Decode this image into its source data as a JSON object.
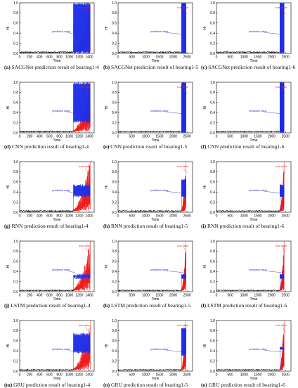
{
  "colors": {
    "axis": "#000000",
    "baseline": "#000000",
    "prediction": "#1f2fe6",
    "true": "#ee1c1c",
    "label": "#2020cc"
  },
  "common": {
    "xlabel": "Time",
    "ylabel": "HI",
    "yticks": [
      "0.0",
      "0.2",
      "0.4",
      "0.6",
      "0.8",
      "1.0"
    ],
    "pred_label": "prediction value",
    "true_label": "true value"
  },
  "panels": [
    {
      "id": "a",
      "caption": "SACGNet prediction result of bearing1-4",
      "xmax": 1500,
      "xticks": [
        "0",
        "200",
        "400",
        "600",
        "800",
        "1000",
        "1200",
        "1400"
      ],
      "ylim": [
        0,
        1.0
      ],
      "onset": 1080,
      "end": 1420,
      "model": "SACGNet",
      "pred_lo": 0.0,
      "pred_hi": 1.0
    },
    {
      "id": "b",
      "caption": "SACGNet prediction result of bearing1-5",
      "xmax": 2700,
      "xticks": [
        "0",
        "500",
        "1000",
        "1500",
        "2000",
        "2500"
      ],
      "ylim": [
        0,
        1.0
      ],
      "onset": 2300,
      "end": 2460,
      "model": "SACGNet",
      "pred_lo": 0.0,
      "pred_hi": 1.0
    },
    {
      "id": "c",
      "caption": "SACGNet prediction result of bearing1-6",
      "xmax": 2700,
      "xticks": [
        "0",
        "500",
        "1000",
        "1500",
        "2000",
        "2500"
      ],
      "ylim": [
        0,
        1.0
      ],
      "onset": 2300,
      "end": 2450,
      "model": "SACGNet",
      "pred_lo": 0.0,
      "pred_hi": 1.0
    },
    {
      "id": "d",
      "caption": "CNN prediction result of bearing1-4",
      "xmax": 1500,
      "xticks": [
        "0",
        "200",
        "400",
        "600",
        "800",
        "1000",
        "1200",
        "1400"
      ],
      "ylim": [
        0,
        1.0
      ],
      "onset": 1080,
      "end": 1420,
      "model": "CNN",
      "pred_lo": 0.2,
      "pred_hi": 1.0
    },
    {
      "id": "e",
      "caption": "CNN prediction result of bearing1-5",
      "xmax": 2700,
      "xticks": [
        "0",
        "500",
        "1000",
        "1500",
        "2000",
        "2500"
      ],
      "ylim": [
        0,
        1.0
      ],
      "onset": 2300,
      "end": 2460,
      "model": "CNN",
      "pred_lo": 0.0,
      "pred_hi": 1.0
    },
    {
      "id": "f",
      "caption": "CNN prediction result of bearing1-6",
      "xmax": 2700,
      "xticks": [
        "0",
        "500",
        "1000",
        "1500",
        "2000",
        "2500"
      ],
      "ylim": [
        0,
        1.0
      ],
      "onset": 2300,
      "end": 2450,
      "model": "CNN",
      "pred_lo": 0.0,
      "pred_hi": 1.0
    },
    {
      "id": "g",
      "caption": "RNN prediction result of bearing1-4",
      "xmax": 1500,
      "xticks": [
        "0",
        "200",
        "400",
        "600",
        "800",
        "1000",
        "1200",
        "1400"
      ],
      "ylim": [
        0,
        1.0
      ],
      "onset": 1080,
      "end": 1420,
      "model": "RNN",
      "pred_lo": 0.3,
      "pred_hi": 0.55
    },
    {
      "id": "h",
      "caption": "RNN prediction result of bearing1-5",
      "xmax": 2700,
      "xticks": [
        "0",
        "500",
        "1000",
        "1500",
        "2000",
        "2500"
      ],
      "ylim": [
        0,
        1.0
      ],
      "onset": 2300,
      "end": 2460,
      "model": "RNN",
      "pred_lo": 0.3,
      "pred_hi": 0.65
    },
    {
      "id": "i",
      "caption": "RNN prediction result of bearing1-6",
      "xmax": 2700,
      "xticks": [
        "0",
        "500",
        "1000",
        "1500",
        "2000",
        "2500"
      ],
      "ylim": [
        0,
        1.0
      ],
      "onset": 2300,
      "end": 2450,
      "model": "RNN",
      "pred_lo": 0.3,
      "pred_hi": 0.55
    },
    {
      "id": "j",
      "caption": "LSTM prediction result of bearing1-4",
      "xmax": 1500,
      "xticks": [
        "0",
        "200",
        "400",
        "600",
        "800",
        "1000",
        "1200",
        "1400"
      ],
      "ylim": [
        0,
        1.0
      ],
      "onset": 1080,
      "end": 1420,
      "model": "LSTM",
      "pred_lo": 0.25,
      "pred_hi": 0.35
    },
    {
      "id": "k",
      "caption": "LSTM prediction result of bearing1-5",
      "xmax": 2700,
      "xticks": [
        "0",
        "500",
        "1000",
        "1500",
        "2000",
        "2500"
      ],
      "ylim": [
        0,
        1.0
      ],
      "onset": 2300,
      "end": 2460,
      "model": "LSTM",
      "pred_lo": 0.25,
      "pred_hi": 0.35
    },
    {
      "id": "l",
      "caption": "LSTM prediction result of bearing1-6",
      "xmax": 2700,
      "xticks": [
        "0",
        "500",
        "1000",
        "1500",
        "2000",
        "2500"
      ],
      "ylim": [
        0,
        1.0
      ],
      "onset": 2300,
      "end": 2450,
      "model": "LSTM",
      "pred_lo": 0.25,
      "pred_hi": 0.35
    },
    {
      "id": "m",
      "caption": "GRU prediction result of bearing1-4",
      "xmax": 1500,
      "xticks": [
        "0",
        "200",
        "400",
        "600",
        "800",
        "1000",
        "1200",
        "1400"
      ],
      "ylim": [
        0,
        1.0
      ],
      "onset": 1080,
      "end": 1420,
      "model": "GRU",
      "pred_lo": 0.35,
      "pred_hi": 0.75
    },
    {
      "id": "n",
      "caption": "GRU prediction result of bearing1-5",
      "xmax": 2700,
      "xticks": [
        "0",
        "500",
        "1000",
        "1500",
        "2000",
        "2500"
      ],
      "ylim": [
        0,
        1.0
      ],
      "onset": 2300,
      "end": 2460,
      "model": "GRU",
      "pred_lo": 0.3,
      "pred_hi": 0.85
    },
    {
      "id": "o",
      "caption": "GRU prediction result of bearing1-6",
      "xmax": 2700,
      "xticks": [
        "0",
        "500",
        "1000",
        "1500",
        "2000",
        "2500"
      ],
      "ylim": [
        0,
        1.0
      ],
      "onset": 2300,
      "end": 2450,
      "model": "GRU",
      "pred_lo": 0.42,
      "pred_hi": 0.48
    }
  ],
  "chart_data": [
    {
      "type": "line",
      "title": "SACGNet prediction result of bearing1-4",
      "xlabel": "Time",
      "ylabel": "HI",
      "xlim": [
        0,
        1500
      ],
      "ylim": [
        0,
        1.0
      ],
      "series": [
        {
          "name": "true value",
          "x": [
            0,
            1080,
            1250,
            1420
          ],
          "y": [
            0.0,
            0.02,
            0.35,
            1.0
          ]
        },
        {
          "name": "prediction value",
          "x": [
            0,
            1080,
            1100,
            1420
          ],
          "y": [
            0.0,
            0.02,
            0.5,
            1.0
          ]
        }
      ]
    },
    {
      "type": "line",
      "title": "SACGNet prediction result of bearing1-5",
      "xlabel": "Time",
      "ylabel": "HI",
      "xlim": [
        0,
        2700
      ],
      "ylim": [
        0,
        1.0
      ],
      "series": [
        {
          "name": "true value",
          "x": [
            0,
            2300,
            2460
          ],
          "y": [
            0.0,
            0.03,
            1.0
          ]
        },
        {
          "name": "prediction value",
          "x": [
            0,
            2300,
            2460
          ],
          "y": [
            0.0,
            0.03,
            1.0
          ]
        }
      ]
    },
    {
      "type": "line",
      "title": "SACGNet prediction result of bearing1-6",
      "xlabel": "Time",
      "ylabel": "HI",
      "xlim": [
        0,
        2700
      ],
      "ylim": [
        0,
        1.0
      ],
      "series": [
        {
          "name": "true value",
          "x": [
            0,
            2300,
            2450
          ],
          "y": [
            0.0,
            0.03,
            1.0
          ]
        },
        {
          "name": "prediction value",
          "x": [
            0,
            2300,
            2450
          ],
          "y": [
            0.0,
            0.03,
            1.0
          ]
        }
      ]
    },
    {
      "type": "line",
      "title": "CNN prediction result of bearing1-4",
      "xlabel": "Time",
      "ylabel": "HI",
      "xlim": [
        0,
        1500
      ],
      "ylim": [
        0,
        1.0
      ],
      "series": [
        {
          "name": "true value",
          "x": [
            0,
            1080,
            1420
          ],
          "y": [
            0.0,
            0.02,
            1.0
          ]
        },
        {
          "name": "prediction value",
          "x": [
            0,
            1080,
            1420
          ],
          "y": [
            0.0,
            0.2,
            1.0
          ]
        }
      ]
    },
    {
      "type": "line",
      "title": "CNN prediction result of bearing1-5",
      "xlabel": "Time",
      "ylabel": "HI",
      "xlim": [
        0,
        2700
      ],
      "ylim": [
        0,
        1.0
      ],
      "series": [
        {
          "name": "true value",
          "x": [
            0,
            2300,
            2460
          ],
          "y": [
            0.0,
            0.03,
            1.0
          ]
        },
        {
          "name": "prediction value",
          "x": [
            0,
            2300,
            2460
          ],
          "y": [
            0.0,
            0.0,
            1.0
          ]
        }
      ]
    },
    {
      "type": "line",
      "title": "CNN prediction result of bearing1-6",
      "xlabel": "Time",
      "ylabel": "HI",
      "xlim": [
        0,
        2700
      ],
      "ylim": [
        0,
        1.0
      ],
      "series": [
        {
          "name": "true value",
          "x": [
            0,
            2300,
            2450
          ],
          "y": [
            0.0,
            0.03,
            1.0
          ]
        },
        {
          "name": "prediction value",
          "x": [
            0,
            2300,
            2450
          ],
          "y": [
            0.0,
            0.0,
            1.0
          ]
        }
      ]
    },
    {
      "type": "line",
      "title": "RNN prediction result of bearing1-4",
      "xlabel": "Time",
      "ylabel": "HI",
      "xlim": [
        0,
        1500
      ],
      "ylim": [
        0,
        1.0
      ],
      "series": [
        {
          "name": "true value",
          "x": [
            0,
            1080,
            1420
          ],
          "y": [
            0.0,
            0.02,
            1.0
          ]
        },
        {
          "name": "prediction value",
          "x": [
            0,
            1080,
            1420
          ],
          "y": [
            0.0,
            0.3,
            0.55
          ]
        }
      ]
    },
    {
      "type": "line",
      "title": "RNN prediction result of bearing1-5",
      "xlabel": "Time",
      "ylabel": "HI",
      "xlim": [
        0,
        2700
      ],
      "ylim": [
        0,
        1.0
      ],
      "series": [
        {
          "name": "true value",
          "x": [
            0,
            2300,
            2460
          ],
          "y": [
            0.0,
            0.03,
            1.0
          ]
        },
        {
          "name": "prediction value",
          "x": [
            0,
            2300,
            2460
          ],
          "y": [
            0.0,
            0.3,
            0.65
          ]
        }
      ]
    },
    {
      "type": "line",
      "title": "RNN prediction result of bearing1-6",
      "xlabel": "Time",
      "ylabel": "HI",
      "xlim": [
        0,
        2700
      ],
      "ylim": [
        0,
        1.0
      ],
      "series": [
        {
          "name": "true value",
          "x": [
            0,
            2300,
            2450
          ],
          "y": [
            0.0,
            0.03,
            1.0
          ]
        },
        {
          "name": "prediction value",
          "x": [
            0,
            2300,
            2450
          ],
          "y": [
            0.0,
            0.3,
            0.55
          ]
        }
      ]
    },
    {
      "type": "line",
      "title": "LSTM prediction result of bearing1-4",
      "xlabel": "Time",
      "ylabel": "HI",
      "xlim": [
        0,
        1500
      ],
      "ylim": [
        0,
        1.0
      ],
      "series": [
        {
          "name": "true value",
          "x": [
            0,
            1080,
            1420
          ],
          "y": [
            0.0,
            0.02,
            1.0
          ]
        },
        {
          "name": "prediction value",
          "x": [
            0,
            1080,
            1420
          ],
          "y": [
            0.0,
            0.25,
            0.35
          ]
        }
      ]
    },
    {
      "type": "line",
      "title": "LSTM prediction result of bearing1-5",
      "xlabel": "Time",
      "ylabel": "HI",
      "xlim": [
        0,
        2700
      ],
      "ylim": [
        0,
        1.0
      ],
      "series": [
        {
          "name": "true value",
          "x": [
            0,
            2300,
            2460
          ],
          "y": [
            0.0,
            0.03,
            1.0
          ]
        },
        {
          "name": "prediction value",
          "x": [
            0,
            2300,
            2460
          ],
          "y": [
            0.0,
            0.25,
            0.35
          ]
        }
      ]
    },
    {
      "type": "line",
      "title": "LSTM prediction result of bearing1-6",
      "xlabel": "Time",
      "ylabel": "HI",
      "xlim": [
        0,
        2700
      ],
      "ylim": [
        0,
        1.0
      ],
      "series": [
        {
          "name": "true value",
          "x": [
            0,
            2300,
            2450
          ],
          "y": [
            0.0,
            0.03,
            1.0
          ]
        },
        {
          "name": "prediction value",
          "x": [
            0,
            2300,
            2450
          ],
          "y": [
            0.0,
            0.25,
            0.35
          ]
        }
      ]
    },
    {
      "type": "line",
      "title": "GRU prediction result of bearing1-4",
      "xlabel": "Time",
      "ylabel": "HI",
      "xlim": [
        0,
        1500
      ],
      "ylim": [
        0,
        1.0
      ],
      "series": [
        {
          "name": "true value",
          "x": [
            0,
            1080,
            1420
          ],
          "y": [
            0.0,
            0.02,
            1.0
          ]
        },
        {
          "name": "prediction value",
          "x": [
            0,
            1080,
            1420
          ],
          "y": [
            0.0,
            0.35,
            0.75
          ]
        }
      ]
    },
    {
      "type": "line",
      "title": "GRU prediction result of bearing1-5",
      "xlabel": "Time",
      "ylabel": "HI",
      "xlim": [
        0,
        2700
      ],
      "ylim": [
        0,
        1.0
      ],
      "series": [
        {
          "name": "true value",
          "x": [
            0,
            2300,
            2460
          ],
          "y": [
            0.0,
            0.03,
            1.0
          ]
        },
        {
          "name": "prediction value",
          "x": [
            0,
            2300,
            2460
          ],
          "y": [
            0.0,
            0.3,
            0.85
          ]
        }
      ]
    },
    {
      "type": "line",
      "title": "GRU prediction result of bearing1-6",
      "xlabel": "Time",
      "ylabel": "HI",
      "xlim": [
        0,
        2700
      ],
      "ylim": [
        0,
        1.0
      ],
      "series": [
        {
          "name": "true value",
          "x": [
            0,
            2300,
            2450
          ],
          "y": [
            0.0,
            0.03,
            1.0
          ]
        },
        {
          "name": "prediction value",
          "x": [
            0,
            2300,
            2450
          ],
          "y": [
            0.0,
            0.42,
            0.48
          ]
        }
      ]
    }
  ]
}
